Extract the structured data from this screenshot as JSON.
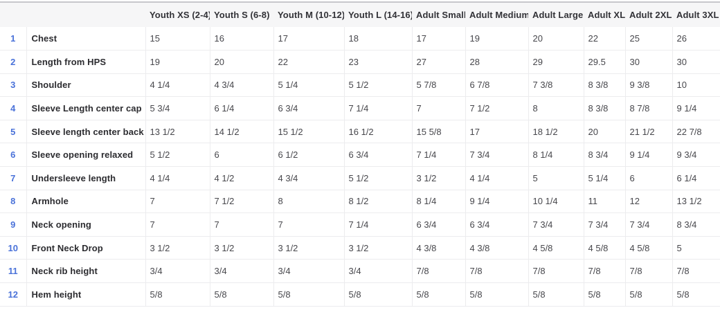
{
  "table": {
    "column_headers": [
      "Youth XS (2-4)",
      "Youth S (6-8)",
      "Youth M (10-12)",
      "Youth L (14-16)",
      "Adult Small",
      "Adult Medium",
      "Adult Large",
      "Adult XL",
      "Adult 2XL",
      "Adult 3XL"
    ],
    "rows": [
      {
        "num": "1",
        "label": "Chest",
        "values": [
          "15",
          "16",
          "17",
          "18",
          "17",
          "19",
          "20",
          "22",
          "25",
          "26"
        ]
      },
      {
        "num": "2",
        "label": "Length from HPS",
        "values": [
          "19",
          "20",
          "22",
          "23",
          "27",
          "28",
          "29",
          "29.5",
          "30",
          "30"
        ]
      },
      {
        "num": "3",
        "label": "Shoulder",
        "values": [
          "4 1/4",
          "4 3/4",
          "5 1/4",
          "5 1/2",
          "5 7/8",
          "6 7/8",
          "7 3/8",
          "8 3/8",
          "9 3/8",
          "10"
        ]
      },
      {
        "num": "4",
        "label": "Sleeve Length center cap",
        "values": [
          "5 3/4",
          "6 1/4",
          "6 3/4",
          "7 1/4",
          "7",
          "7 1/2",
          "8",
          "8 3/8",
          "8 7/8",
          "9 1/4"
        ]
      },
      {
        "num": "5",
        "label": "Sleeve length center back",
        "values": [
          "13 1/2",
          "14 1/2",
          "15 1/2",
          "16 1/2",
          "15 5/8",
          "17",
          "18 1/2",
          "20",
          "21 1/2",
          "22 7/8"
        ]
      },
      {
        "num": "6",
        "label": "Sleeve opening relaxed",
        "values": [
          "5 1/2",
          "6",
          "6 1/2",
          "6 3/4",
          "7 1/4",
          "7 3/4",
          "8 1/4",
          "8 3/4",
          "9 1/4",
          "9 3/4"
        ]
      },
      {
        "num": "7",
        "label": "Undersleeve length",
        "values": [
          "4 1/4",
          "4 1/2",
          "4 3/4",
          "5 1/2",
          "3 1/2",
          "4 1/4",
          "5",
          "5 1/4",
          "6",
          "6 1/4"
        ]
      },
      {
        "num": "8",
        "label": "Armhole",
        "values": [
          "7",
          "7 1/2",
          "8",
          "8 1/2",
          "8 1/4",
          "9 1/4",
          "10 1/4",
          "11",
          "12",
          "13 1/2"
        ]
      },
      {
        "num": "9",
        "label": "Neck opening",
        "values": [
          "7",
          "7",
          "7",
          "7 1/4",
          "6 3/4",
          "6 3/4",
          "7 3/4",
          "7 3/4",
          "7 3/4",
          "8 3/4"
        ]
      },
      {
        "num": "10",
        "label": "Front Neck Drop",
        "values": [
          "3 1/2",
          "3 1/2",
          "3 1/2",
          "3 1/2",
          "4 3/8",
          "4 3/8",
          "4 5/8",
          "4 5/8",
          "4 5/8",
          "5"
        ]
      },
      {
        "num": "11",
        "label": "Neck rib height",
        "values": [
          "3/4",
          "3/4",
          "3/4",
          "3/4",
          "7/8",
          "7/8",
          "7/8",
          "7/8",
          "7/8",
          "7/8"
        ]
      },
      {
        "num": "12",
        "label": "Hem height",
        "values": [
          "5/8",
          "5/8",
          "5/8",
          "5/8",
          "5/8",
          "5/8",
          "5/8",
          "5/8",
          "5/8",
          "5/8"
        ]
      }
    ],
    "colors": {
      "header_bg": "#f6f6f7",
      "row_number": "#4a72d9",
      "grid_line": "#ececee",
      "top_border": "#c7c7cb",
      "header_text": "#323237",
      "label_text": "#2c2c30",
      "value_text": "#47474c"
    }
  }
}
